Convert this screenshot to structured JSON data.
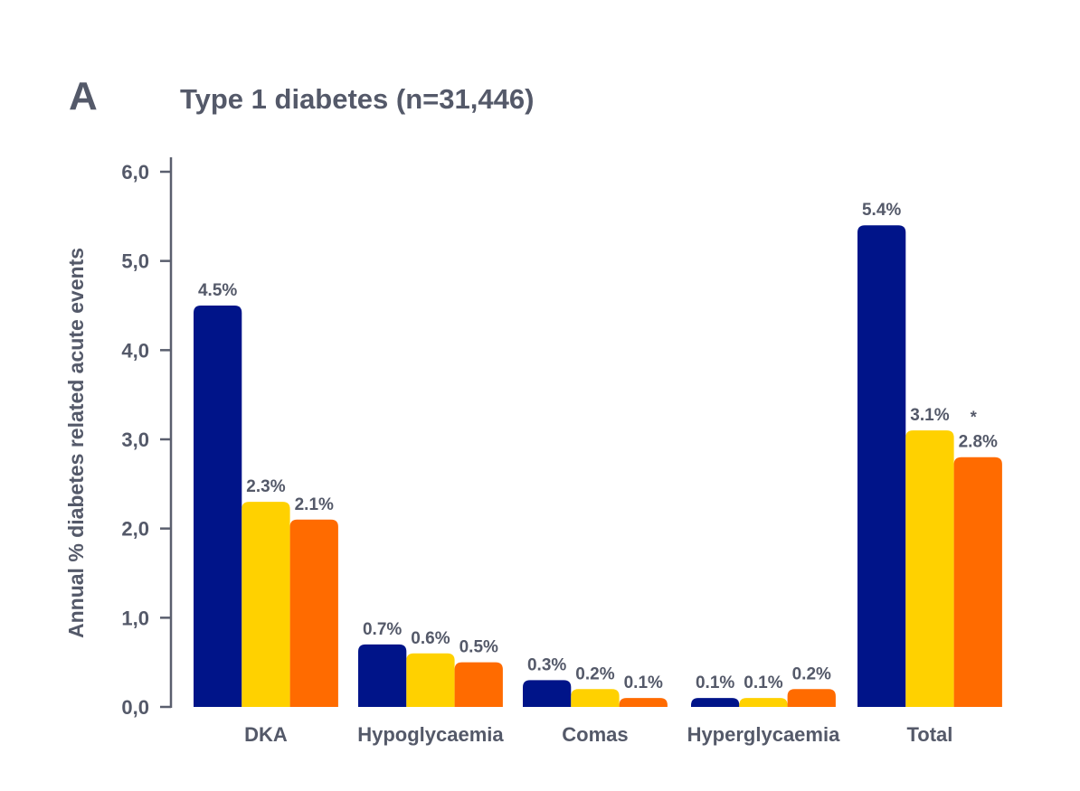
{
  "panel_letter": "A",
  "chart_data": {
    "type": "bar",
    "title": "Type 1 diabetes (n=31,446)",
    "ylabel": "Annual % diabetes related acute events",
    "xlabel": "",
    "ylim": [
      0,
      6
    ],
    "yticks": [
      "0,0",
      "1,0",
      "2,0",
      "3,0",
      "4,0",
      "5,0",
      "6,0"
    ],
    "categories": [
      "DKA",
      "Hypoglycaemia",
      "Comas",
      "Hyperglycaemia",
      "Total"
    ],
    "series": [
      {
        "color": "#001489",
        "values": [
          4.5,
          0.7,
          0.3,
          0.1,
          5.4
        ],
        "labels": [
          "4.5%",
          "0.7%",
          "0.3%",
          "0.1%",
          "5.4%"
        ]
      },
      {
        "color": "#FFD100",
        "values": [
          2.3,
          0.6,
          0.2,
          0.1,
          3.1
        ],
        "labels": [
          "2.3%",
          "0.6%",
          "0.2%",
          "0.1%",
          "3.1%"
        ]
      },
      {
        "color": "#FF6B00",
        "values": [
          2.1,
          0.5,
          0.1,
          0.2,
          2.8
        ],
        "labels": [
          "2.1%",
          "0.5%",
          "0.1%",
          "0.2%",
          "2.8%"
        ]
      }
    ],
    "annotations": [
      {
        "category": "Total",
        "series_index": 2,
        "text": "*"
      }
    ],
    "grid": false,
    "legend": "none"
  }
}
